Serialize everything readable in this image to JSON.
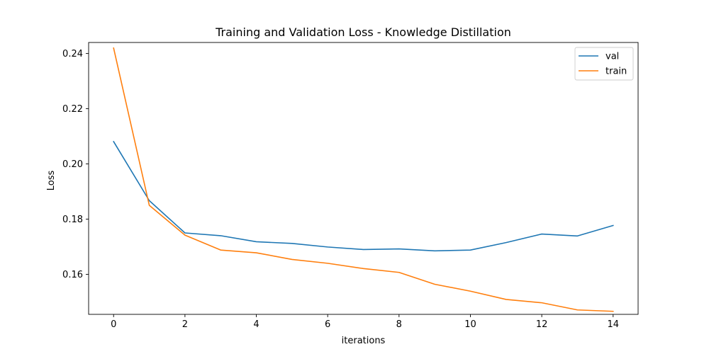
{
  "chart_data": {
    "type": "line",
    "title": "Training and Validation Loss - Knowledge Distillation",
    "xlabel": "iterations",
    "ylabel": "Loss",
    "xlim": [
      -0.7,
      14.7
    ],
    "ylim": [
      0.1455,
      0.244
    ],
    "xticks": [
      0,
      2,
      4,
      6,
      8,
      10,
      12,
      14
    ],
    "yticks": [
      0.16,
      0.18,
      0.2,
      0.22,
      0.24
    ],
    "ytick_labels": [
      "0.16",
      "0.18",
      "0.20",
      "0.22",
      "0.24"
    ],
    "grid": false,
    "legend_position": "top-right",
    "x": [
      0,
      1,
      2,
      3,
      4,
      5,
      6,
      7,
      8,
      9,
      10,
      11,
      12,
      13,
      14
    ],
    "series": [
      {
        "name": "val",
        "color": "#1f77b4",
        "values": [
          0.2081,
          0.1867,
          0.175,
          0.174,
          0.1718,
          0.1712,
          0.1699,
          0.169,
          0.1692,
          0.1685,
          0.1688,
          0.1715,
          0.1746,
          0.1739,
          0.1777
        ]
      },
      {
        "name": "train",
        "color": "#ff7f0e",
        "values": [
          0.242,
          0.185,
          0.1742,
          0.1688,
          0.1678,
          0.1654,
          0.164,
          0.1621,
          0.1607,
          0.1564,
          0.1539,
          0.1509,
          0.1497,
          0.1471,
          0.1466
        ]
      }
    ]
  }
}
